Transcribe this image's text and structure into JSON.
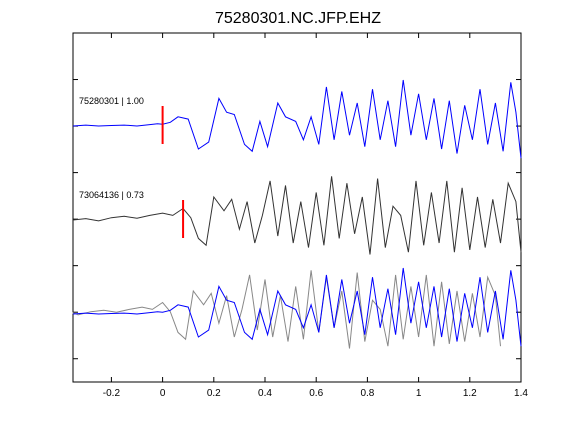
{
  "chart_data": {
    "type": "line",
    "title": "75280301.NC.JFP.EHZ",
    "xlabel": "",
    "ylabel": "",
    "xlim": [
      -0.35,
      1.4
    ],
    "x_ticks": [
      -0.2,
      0,
      0.2,
      0.4,
      0.6,
      0.8,
      1,
      1.2,
      1.4
    ],
    "x_tick_labels": [
      "-0.2",
      "0",
      "0.2",
      "0.4",
      "0.6",
      "0.8",
      "1",
      "1.2",
      "1.4"
    ],
    "y_tick_count": 7,
    "grid": false,
    "traces": [
      {
        "label": "75280301 | 1.00",
        "color": "#0000ff",
        "pick_time": 0.0,
        "pick_color": "#ff0000",
        "x": [
          -0.35,
          -0.3,
          -0.25,
          -0.2,
          -0.15,
          -0.1,
          -0.05,
          -0.02,
          0.0,
          0.03,
          0.06,
          0.1,
          0.14,
          0.18,
          0.22,
          0.25,
          0.28,
          0.32,
          0.35,
          0.38,
          0.41,
          0.45,
          0.48,
          0.52,
          0.55,
          0.58,
          0.61,
          0.64,
          0.67,
          0.7,
          0.73,
          0.76,
          0.79,
          0.82,
          0.85,
          0.88,
          0.91,
          0.94,
          0.97,
          1.0,
          1.03,
          1.06,
          1.09,
          1.12,
          1.15,
          1.18,
          1.21,
          1.24,
          1.27,
          1.3,
          1.33,
          1.36,
          1.38,
          1.4
        ],
        "y": [
          0.0,
          0.02,
          0.0,
          0.01,
          0.02,
          0.0,
          0.03,
          0.05,
          0.04,
          0.08,
          0.2,
          0.15,
          -0.5,
          -0.35,
          0.6,
          0.3,
          0.25,
          -0.4,
          -0.55,
          0.1,
          -0.45,
          0.5,
          0.2,
          0.1,
          -0.3,
          0.2,
          -0.4,
          0.85,
          -0.3,
          0.75,
          -0.2,
          0.5,
          -0.45,
          0.8,
          -0.3,
          0.55,
          -0.45,
          1.0,
          -0.2,
          0.7,
          -0.3,
          0.6,
          -0.5,
          0.55,
          -0.6,
          0.45,
          -0.3,
          0.8,
          -0.4,
          0.5,
          -0.55,
          0.95,
          0.3,
          -0.7
        ]
      },
      {
        "label": "73064136 | 0.73",
        "color": "#333333",
        "pick_time": 0.08,
        "pick_color": "#ff0000",
        "x": [
          -0.35,
          -0.3,
          -0.25,
          -0.2,
          -0.15,
          -0.1,
          -0.05,
          0.0,
          0.04,
          0.08,
          0.11,
          0.14,
          0.17,
          0.2,
          0.24,
          0.27,
          0.3,
          0.33,
          0.36,
          0.39,
          0.42,
          0.45,
          0.48,
          0.51,
          0.54,
          0.57,
          0.6,
          0.63,
          0.66,
          0.69,
          0.72,
          0.75,
          0.78,
          0.81,
          0.84,
          0.87,
          0.9,
          0.93,
          0.96,
          0.99,
          1.02,
          1.05,
          1.08,
          1.11,
          1.14,
          1.17,
          1.2,
          1.23,
          1.26,
          1.29,
          1.32,
          1.35,
          1.38,
          1.4
        ],
        "y": [
          0.0,
          0.03,
          -0.02,
          0.05,
          0.08,
          0.04,
          0.1,
          0.15,
          0.1,
          0.25,
          0.05,
          -0.4,
          -0.55,
          0.5,
          0.2,
          0.45,
          -0.2,
          0.4,
          -0.5,
          0.1,
          0.85,
          -0.35,
          0.75,
          -0.5,
          0.4,
          -0.6,
          0.6,
          -0.55,
          0.95,
          -0.4,
          0.8,
          -0.3,
          0.5,
          -0.75,
          0.9,
          -0.6,
          0.3,
          0.1,
          -0.7,
          0.85,
          -0.55,
          0.6,
          -0.5,
          0.85,
          -0.7,
          0.7,
          -0.65,
          0.5,
          -0.6,
          0.45,
          -0.5,
          0.8,
          0.4,
          -0.7
        ]
      }
    ]
  }
}
